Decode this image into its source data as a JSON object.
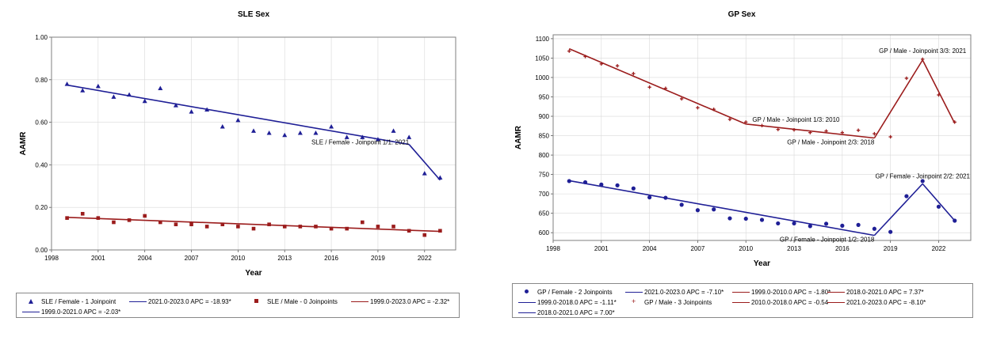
{
  "colors": {
    "blue": "#1f1f96",
    "red": "#9b1c1c",
    "frame": "#7f7f7f",
    "grid": "#d9d9d9"
  },
  "chart_data": [
    {
      "type": "line",
      "title": "SLE Sex",
      "xlabel": "Year",
      "ylabel": "AAMR",
      "xlim": [
        1998,
        2024
      ],
      "ylim": [
        0,
        1.0
      ],
      "xticks": [
        1998,
        2001,
        2004,
        2007,
        2010,
        2013,
        2016,
        2019,
        2022
      ],
      "yticks": [
        0,
        0.2,
        0.4,
        0.6,
        0.8,
        1.0
      ],
      "ytick_labels": [
        "0.00",
        "0.20",
        "0.40",
        "0.60",
        "0.80",
        "1.00"
      ],
      "grid": true,
      "series": [
        {
          "name": "SLE / Female - 1 Joinpoint",
          "kind": "observed",
          "marker": "triangle",
          "color": "#1f1f96",
          "x": [
            1999,
            2000,
            2001,
            2002,
            2003,
            2004,
            2005,
            2006,
            2007,
            2008,
            2009,
            2010,
            2011,
            2012,
            2013,
            2014,
            2015,
            2016,
            2017,
            2018,
            2019,
            2020,
            2021,
            2022,
            2023
          ],
          "y": [
            0.78,
            0.75,
            0.77,
            0.72,
            0.73,
            0.7,
            0.76,
            0.68,
            0.65,
            0.66,
            0.58,
            0.61,
            0.56,
            0.55,
            0.54,
            0.55,
            0.55,
            0.58,
            0.53,
            0.53,
            0.52,
            0.56,
            0.53,
            0.36,
            0.34
          ]
        },
        {
          "name": "1999.0-2021.0 APC = -2.03*",
          "kind": "fit",
          "color": "#1f1f96",
          "x": [
            1999,
            2021
          ],
          "y": [
            0.775,
            0.496
          ]
        },
        {
          "name": "2021.0-2023.0 APC = -18.93*",
          "kind": "fit",
          "color": "#1f1f96",
          "x": [
            2021,
            2023
          ],
          "y": [
            0.496,
            0.328
          ]
        },
        {
          "name": "SLE / Male - 0 Joinpoints",
          "kind": "observed",
          "marker": "square",
          "color": "#9b1c1c",
          "x": [
            1999,
            2000,
            2001,
            2002,
            2003,
            2004,
            2005,
            2006,
            2007,
            2008,
            2009,
            2010,
            2011,
            2012,
            2013,
            2014,
            2015,
            2016,
            2017,
            2018,
            2019,
            2020,
            2021,
            2022,
            2023
          ],
          "y": [
            0.15,
            0.17,
            0.15,
            0.13,
            0.14,
            0.16,
            0.13,
            0.12,
            0.12,
            0.11,
            0.12,
            0.11,
            0.1,
            0.12,
            0.11,
            0.11,
            0.11,
            0.1,
            0.1,
            0.13,
            0.11,
            0.11,
            0.09,
            0.07,
            0.09
          ]
        },
        {
          "name": "1999.0-2023.0 APC = -2.32*",
          "kind": "fit",
          "color": "#9b1c1c",
          "x": [
            1999,
            2023
          ],
          "y": [
            0.153,
            0.087
          ]
        }
      ],
      "annotations": [
        {
          "text": "SLE / Female - Joinpoint 1/1:  2021",
          "x": 2021,
          "y": 0.496,
          "anchor": "end"
        }
      ],
      "legend": {
        "placement": "bottom",
        "entries": [
          {
            "label": "SLE / Female - 1 Joinpoint",
            "symbol": "triangle",
            "color": "#1f1f96"
          },
          {
            "label": "2021.0-2023.0 APC  = -18.93*",
            "symbol": "line",
            "color": "#1f1f96"
          },
          {
            "label": "SLE / Male - 0 Joinpoints",
            "symbol": "square",
            "color": "#9b1c1c"
          },
          {
            "label": "1999.0-2023.0 APC  = -2.32*",
            "symbol": "line",
            "color": "#9b1c1c"
          },
          {
            "label": "1999.0-2021.0 APC  = -2.03*",
            "symbol": "line",
            "color": "#1f1f96"
          }
        ]
      }
    },
    {
      "type": "line",
      "title": "GP Sex",
      "xlabel": "Year",
      "ylabel": "AAMR",
      "xlim": [
        1998,
        2024
      ],
      "ylim": [
        580,
        1110
      ],
      "xticks": [
        1998,
        2001,
        2004,
        2007,
        2010,
        2013,
        2016,
        2019,
        2022
      ],
      "yticks": [
        600,
        650,
        700,
        750,
        800,
        850,
        900,
        950,
        1000,
        1050,
        1100
      ],
      "ytick_labels": [
        "600",
        "650",
        "700",
        "750",
        "800",
        "850",
        "900",
        "950",
        "1000",
        "1050",
        "1100"
      ],
      "grid": true,
      "series": [
        {
          "name": "GP / Female - 2 Joinpoints",
          "kind": "observed",
          "marker": "circle",
          "color": "#1f1f96",
          "x": [
            1999,
            2000,
            2001,
            2002,
            2003,
            2004,
            2005,
            2006,
            2007,
            2008,
            2009,
            2010,
            2011,
            2012,
            2013,
            2014,
            2015,
            2016,
            2017,
            2018,
            2019,
            2020,
            2021,
            2022,
            2023
          ],
          "y": [
            733,
            730,
            724,
            722,
            714,
            691,
            690,
            672,
            658,
            660,
            637,
            636,
            633,
            624,
            624,
            617,
            623,
            618,
            620,
            610,
            602,
            694,
            733,
            667,
            631
          ]
        },
        {
          "name": "1999.0-2018.0 APC = -1.11*",
          "kind": "fit",
          "color": "#1f1f96",
          "x": [
            1999,
            2018
          ],
          "y": [
            734,
            593
          ]
        },
        {
          "name": "2018.0-2021.0 APC = 7.00*",
          "kind": "fit",
          "color": "#1f1f96",
          "x": [
            2018,
            2021
          ],
          "y": [
            593,
            726
          ]
        },
        {
          "name": "2021.0-2023.0 APC = -7.10*",
          "kind": "fit",
          "color": "#1f1f96",
          "x": [
            2021,
            2023
          ],
          "y": [
            726,
            631
          ]
        },
        {
          "name": "GP / Male - 3 Joinpoints",
          "kind": "observed",
          "marker": "plus",
          "color": "#9b1c1c",
          "x": [
            1999,
            2000,
            2001,
            2002,
            2003,
            2004,
            2005,
            2006,
            2007,
            2008,
            2009,
            2010,
            2011,
            2012,
            2013,
            2014,
            2015,
            2016,
            2017,
            2018,
            2019,
            2020,
            2021,
            2022,
            2023
          ],
          "y": [
            1068,
            1054,
            1035,
            1030,
            1010,
            975,
            972,
            945,
            922,
            918,
            892,
            885,
            876,
            866,
            865,
            858,
            862,
            858,
            864,
            855,
            847,
            998,
            1047,
            955,
            885
          ]
        },
        {
          "name": "1999.0-2010.0 APC = -1.80*",
          "kind": "fit",
          "color": "#9b1c1c",
          "x": [
            1999,
            2010
          ],
          "y": [
            1074,
            880
          ]
        },
        {
          "name": "2010.0-2018.0 APC = -0.54",
          "kind": "fit",
          "color": "#9b1c1c",
          "x": [
            2010,
            2018
          ],
          "y": [
            880,
            844
          ]
        },
        {
          "name": "2018.0-2021.0 APC = 7.37*",
          "kind": "fit",
          "color": "#9b1c1c",
          "x": [
            2018,
            2021
          ],
          "y": [
            844,
            1045
          ]
        },
        {
          "name": "2021.0-2023.0 APC = -8.10*",
          "kind": "fit",
          "color": "#9b1c1c",
          "x": [
            2021,
            2023
          ],
          "y": [
            1045,
            882
          ]
        }
      ],
      "annotations": [
        {
          "text": "GP / Male - Joinpoint 3/3:  2021",
          "x": 2021,
          "y": 1063,
          "anchor": "middle"
        },
        {
          "text": "GP / Male - Joinpoint 1/3:  2010",
          "x": 2010.4,
          "y": 886,
          "anchor": "start"
        },
        {
          "text": "GP / Male - Joinpoint 2/3:  2018",
          "x": 2018,
          "y": 828,
          "anchor": "end"
        },
        {
          "text": "GP / Female - Joinpoint 2/2:  2021",
          "x": 2021,
          "y": 740,
          "anchor": "middle"
        },
        {
          "text": "GP / Female - Joinpoint 1/2:  2018",
          "x": 2018,
          "y": 577,
          "anchor": "end"
        }
      ],
      "legend": {
        "placement": "bottom",
        "entries": [
          {
            "label": "GP / Female - 2 Joinpoints",
            "symbol": "circle",
            "color": "#1f1f96"
          },
          {
            "label": "2021.0-2023.0 APC  = -7.10*",
            "symbol": "line",
            "color": "#1f1f96"
          },
          {
            "label": "1999.0-2010.0 APC  = -1.80*",
            "symbol": "line",
            "color": "#9b1c1c"
          },
          {
            "label": "2018.0-2021.0 APC  = 7.37*",
            "symbol": "line",
            "color": "#9b1c1c"
          },
          {
            "label": "1999.0-2018.0 APC  = -1.11*",
            "symbol": "line",
            "color": "#1f1f96"
          },
          {
            "label": "GP / Male - 3 Joinpoints",
            "symbol": "plus",
            "color": "#9b1c1c"
          },
          {
            "label": "2010.0-2018.0 APC  = -0.54",
            "symbol": "line",
            "color": "#9b1c1c"
          },
          {
            "label": "2021.0-2023.0 APC  = -8.10*",
            "symbol": "line",
            "color": "#9b1c1c"
          },
          {
            "label": "2018.0-2021.0 APC  = 7.00*",
            "symbol": "line",
            "color": "#1f1f96"
          }
        ]
      }
    }
  ]
}
